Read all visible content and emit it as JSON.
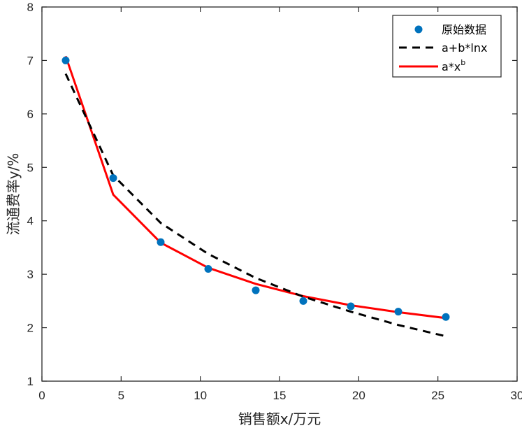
{
  "chart_data": {
    "type": "line",
    "xlabel": "销售额x/万元",
    "ylabel": "流通费率y/%",
    "xlim": [
      0,
      30
    ],
    "ylim": [
      1,
      8
    ],
    "xticks": [
      0,
      5,
      10,
      15,
      20,
      25,
      30
    ],
    "yticks": [
      1,
      2,
      3,
      4,
      5,
      6,
      7,
      8
    ],
    "grid": false,
    "legend_position": "top-right",
    "series": [
      {
        "name": "原始数据",
        "kind": "scatter",
        "color": "#0072BD",
        "x": [
          1.5,
          4.5,
          7.5,
          10.5,
          13.5,
          16.5,
          19.5,
          22.5,
          25.5
        ],
        "y": [
          7.0,
          4.8,
          3.6,
          3.1,
          2.7,
          2.5,
          2.4,
          2.3,
          2.2
        ]
      },
      {
        "name": "a+b*lnx",
        "kind": "dashed-line",
        "color": "#000000",
        "x": [
          1.5,
          4.5,
          7.5,
          10.5,
          13.5,
          16.5,
          19.5,
          22.5,
          25.5
        ],
        "y": [
          6.75,
          4.85,
          3.96,
          3.38,
          2.93,
          2.58,
          2.3,
          2.05,
          1.84
        ]
      },
      {
        "name": "a*x^b",
        "legend_base": "a*x",
        "legend_sup": "b",
        "kind": "solid-line",
        "color": "#FF0000",
        "x": [
          1.5,
          4.5,
          7.5,
          10.5,
          13.5,
          16.5,
          19.5,
          22.5,
          25.5
        ],
        "y": [
          7.08,
          4.49,
          3.59,
          3.12,
          2.82,
          2.59,
          2.42,
          2.29,
          2.18
        ]
      }
    ]
  }
}
